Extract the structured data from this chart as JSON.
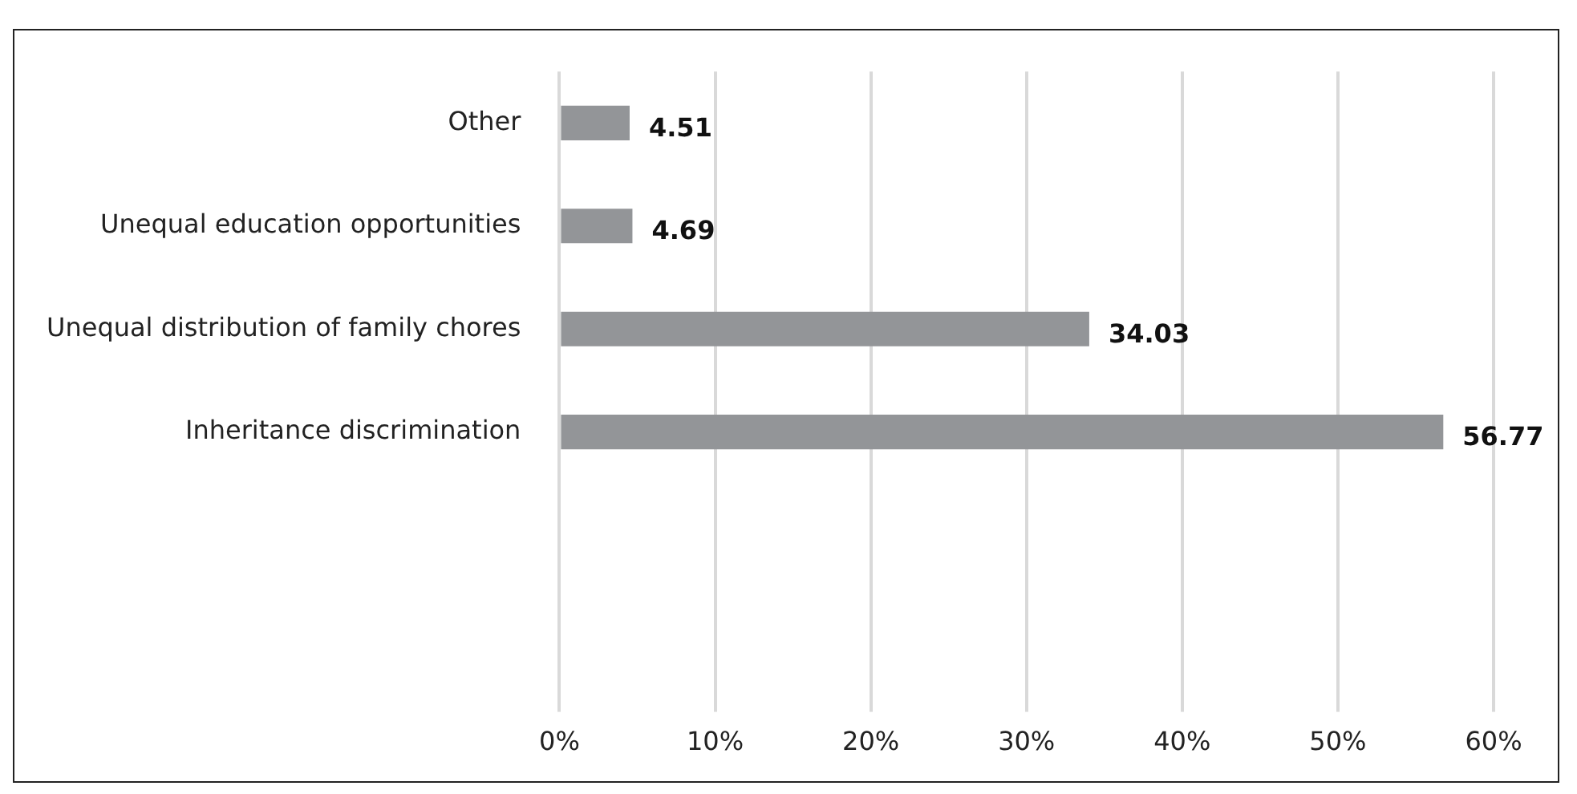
{
  "chart_data": {
    "type": "bar",
    "orientation": "horizontal",
    "categories": [
      "Other",
      "Unequal education opportunities",
      "Unequal distribution of family chores",
      "Inheritance discrimination",
      null,
      null
    ],
    "values": [
      4.51,
      4.69,
      34.03,
      56.77,
      null,
      null
    ],
    "color": "#939598",
    "xlim": [
      0,
      60
    ],
    "xticks": [
      {
        "value": 0,
        "label": "0%"
      },
      {
        "value": 10,
        "label": "10%"
      },
      {
        "value": 20,
        "label": "20%"
      },
      {
        "value": 30,
        "label": "30%"
      },
      {
        "value": 40,
        "label": "40%"
      },
      {
        "value": 50,
        "label": "50%"
      },
      {
        "value": 60,
        "label": "60%"
      }
    ],
    "grid": "x",
    "data_labels": true,
    "legend": false
  }
}
